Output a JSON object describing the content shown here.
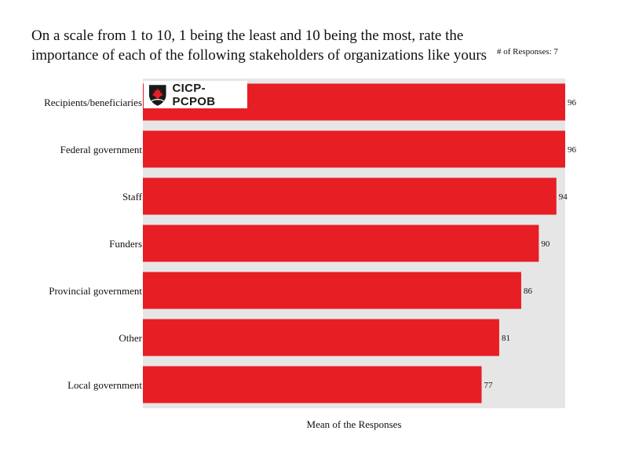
{
  "title": "On a scale from 1 to 10, 1 being the least and 10 being the most, rate the importance of each of the following stakeholders of organizations like yours",
  "responses_label": "# of Responses: 7",
  "logo_text": "CICP-PCPOB",
  "colors": {
    "bar": "#e81e25",
    "plot_bg": "#e6e6e6",
    "logo_shield": "#1a1a1a",
    "logo_leaf": "#e81e25"
  },
  "chart_data": {
    "type": "bar",
    "orientation": "horizontal",
    "categories": [
      "Recipients/beneficiaries",
      "Federal government",
      "Staff",
      "Funders",
      "Provincial government",
      "Other",
      "Local government"
    ],
    "values": [
      96,
      96,
      94,
      90,
      86,
      81,
      77
    ],
    "xlabel": "Mean of the Responses",
    "xlim": [
      0,
      96
    ],
    "grid": false
  }
}
